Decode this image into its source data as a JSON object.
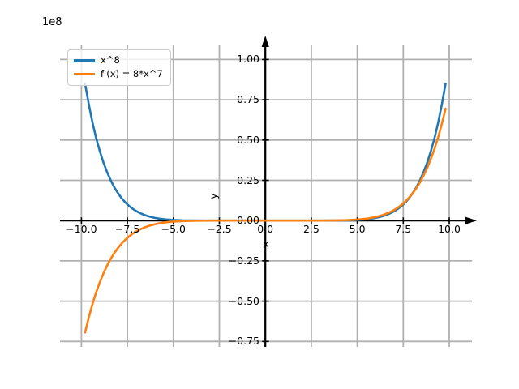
{
  "figure": {
    "offset_text": "1e8",
    "xlabel": "x",
    "ylabel": "y",
    "background": "#ffffff"
  },
  "legend": {
    "position": "upper left",
    "entries": [
      {
        "label": "x^8",
        "color": "#1f77b4"
      },
      {
        "label": "f'(x) = 8*x^7",
        "color": "#ff7f0e"
      }
    ]
  },
  "chart_data": {
    "type": "line",
    "title": "",
    "xlabel": "x",
    "ylabel": "y",
    "y_offset_text": "1e8",
    "grid": true,
    "grid_color": "#b0b0b0",
    "axis_color": "#000000",
    "legend_position": "upper left",
    "xlim": [
      -11.2,
      11.2
    ],
    "ylim_in_1e8_units": [
      -0.78,
      1.08
    ],
    "x_tick_values": [
      -10,
      -7.5,
      -5,
      -2.5,
      0,
      2.5,
      5,
      7.5,
      10
    ],
    "x_tick_labels": [
      "−10.0",
      "−7.5",
      "−5.0",
      "−2.5",
      "0.0",
      "2.5",
      "5.0",
      "7.5",
      "10.0"
    ],
    "y_tick_values": [
      -0.75,
      -0.5,
      -0.25,
      0,
      0.25,
      0.5,
      0.75,
      1
    ],
    "y_tick_labels": [
      "−0.75",
      "−0.50",
      "−0.25",
      "0.00",
      "0.25",
      "0.50",
      "0.75",
      "1.00"
    ],
    "x": [
      -9.8,
      -9.6,
      -9.4,
      -9.2,
      -9.0,
      -8.8,
      -8.6,
      -8.4,
      -8.2,
      -8.0,
      -7.8,
      -7.6,
      -7.4,
      -7.2,
      -7.0,
      -6.8,
      -6.6,
      -6.4,
      -6.2,
      -6.0,
      -5.8,
      -5.6,
      -5.4,
      -5.2,
      -5.0,
      -4.5,
      -4.0,
      -3.0,
      -2.0,
      -1.0,
      0.0,
      1.0,
      2.0,
      3.0,
      4.0,
      4.5,
      5.0,
      5.2,
      5.4,
      5.6,
      5.8,
      6.0,
      6.2,
      6.4,
      6.6,
      6.8,
      7.0,
      7.2,
      7.4,
      7.6,
      7.8,
      8.0,
      8.2,
      8.4,
      8.6,
      8.8,
      9.0,
      9.2,
      9.4,
      9.6,
      9.8
    ],
    "series": [
      {
        "name": "x^8",
        "color": "#1f77b4",
        "units": "1e8",
        "values": [
          0.8508,
          0.7214,
          0.6096,
          0.5132,
          0.4305,
          0.3596,
          0.2992,
          0.2479,
          0.2044,
          0.1678,
          0.137,
          0.1113,
          0.0899,
          0.0722,
          0.0576,
          0.0457,
          0.036,
          0.0281,
          0.0218,
          0.0168,
          0.0128,
          0.0097,
          0.0072,
          0.0053,
          0.0039,
          0.0017,
          0.0007,
          0.0001,
          0.0,
          0.0,
          0.0,
          0.0,
          0.0,
          0.0001,
          0.0007,
          0.0017,
          0.0039,
          0.0053,
          0.0072,
          0.0097,
          0.0128,
          0.0168,
          0.0218,
          0.0281,
          0.036,
          0.0457,
          0.0576,
          0.0722,
          0.0899,
          0.1113,
          0.137,
          0.1678,
          0.2044,
          0.2479,
          0.2992,
          0.3596,
          0.4305,
          0.5132,
          0.6096,
          0.7214,
          0.8508
        ]
      },
      {
        "name": "f'(x) = 8*x^7",
        "color": "#ff7f0e",
        "units": "1e8",
        "values": [
          -0.6945,
          -0.6012,
          -0.5188,
          -0.4463,
          -0.3826,
          -0.3269,
          -0.2783,
          -0.2361,
          -0.1994,
          -0.1678,
          -0.1405,
          -0.1172,
          -0.0972,
          -0.0802,
          -0.0659,
          -0.0538,
          -0.0436,
          -0.0352,
          -0.0282,
          -0.0224,
          -0.0177,
          -0.0138,
          -0.0107,
          -0.0082,
          -0.0063,
          -0.003,
          -0.0013,
          -0.0002,
          0.0,
          0.0,
          0.0,
          0.0,
          0.0,
          0.0002,
          0.0013,
          0.003,
          0.0063,
          0.0082,
          0.0107,
          0.0138,
          0.0177,
          0.0224,
          0.0282,
          0.0352,
          0.0436,
          0.0538,
          0.0659,
          0.0802,
          0.0972,
          0.1172,
          0.1405,
          0.1678,
          0.1994,
          0.2361,
          0.2783,
          0.3269,
          0.3826,
          0.4463,
          0.5188,
          0.6012,
          0.6945
        ]
      }
    ]
  }
}
